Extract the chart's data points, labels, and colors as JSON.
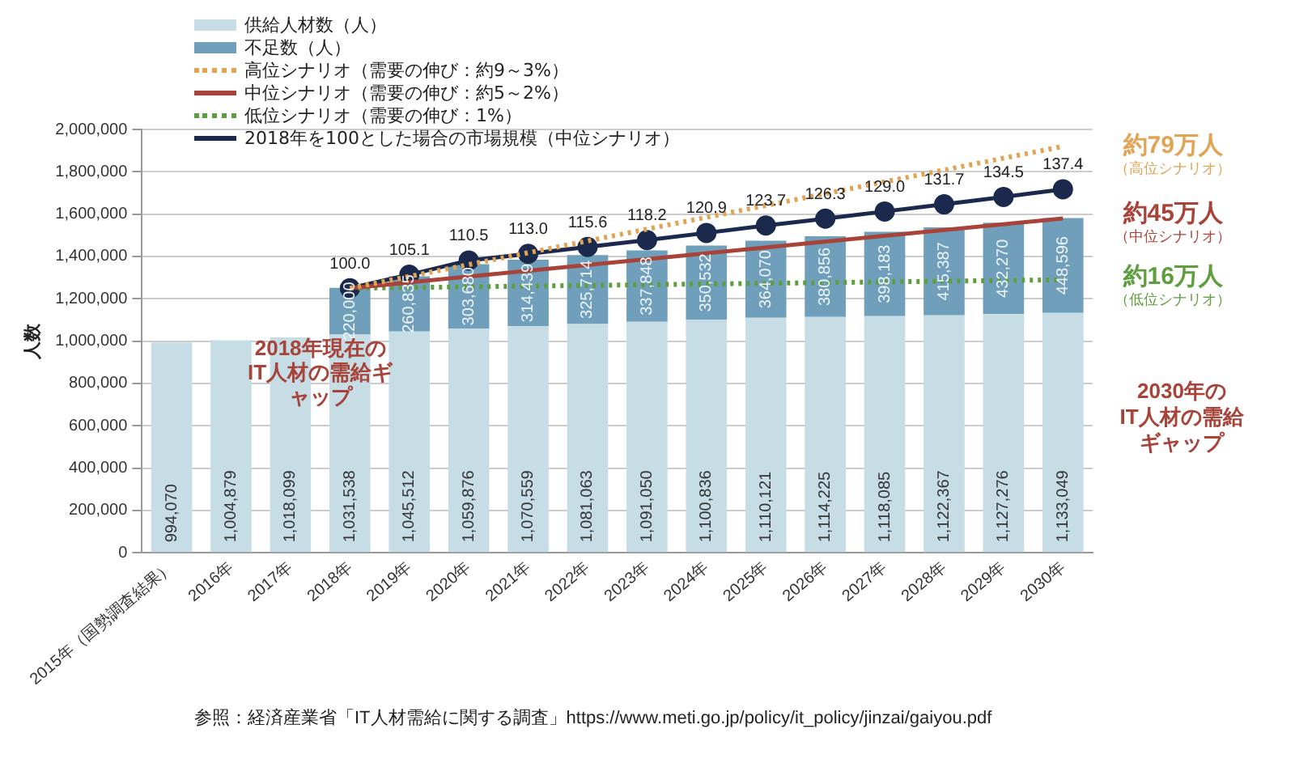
{
  "chart_data": {
    "type": "bar",
    "stacked": true,
    "ylabel": "人数",
    "categories": [
      "2015年（国勢調査結果）",
      "2016年",
      "2017年",
      "2018年",
      "2019年",
      "2020年",
      "2021年",
      "2022年",
      "2023年",
      "2024年",
      "2025年",
      "2026年",
      "2027年",
      "2028年",
      "2029年",
      "2030年"
    ],
    "series": [
      {
        "name": "供給人材数（人）",
        "color": "#c6dde6",
        "values": [
          994070,
          1004879,
          1018099,
          1031538,
          1045512,
          1059876,
          1070559,
          1081063,
          1091050,
          1100836,
          1110121,
          1114225,
          1118085,
          1122367,
          1127276,
          1133049
        ],
        "value_labels": [
          "994,070",
          "1,004,879",
          "1,018,099",
          "1,031,538",
          "1,045,512",
          "1,059,876",
          "1,070,559",
          "1,081,063",
          "1,091,050",
          "1,100,836",
          "1,110,121",
          "1,114,225",
          "1,118,085",
          "1,122,367",
          "1,127,276",
          "1,133,049"
        ]
      },
      {
        "name": "不足数（人）",
        "color": "#6f9fbb",
        "values": [
          null,
          null,
          null,
          220000,
          260835,
          303680,
          314439,
          325714,
          337848,
          350532,
          364070,
          380856,
          398183,
          415387,
          432270,
          448596
        ],
        "value_labels": [
          null,
          null,
          null,
          "220,000",
          "260,835",
          "303,680",
          "314,439",
          "325,714",
          "337,848",
          "350,532",
          "364,070",
          "380,856",
          "398,183",
          "415,387",
          "432,270",
          "448,596"
        ]
      },
      {
        "name": "高位シナリオ（需要の伸び：約9～3%）",
        "type": "line",
        "color": "#e0a454",
        "line_style": "dotted",
        "marker": "none",
        "values": [
          null,
          null,
          null,
          1250000,
          null,
          null,
          null,
          null,
          null,
          null,
          null,
          null,
          null,
          null,
          null,
          1920000
        ]
      },
      {
        "name": "中位シナリオ（需要の伸び：約5～2%）",
        "type": "line",
        "color": "#a8433a",
        "line_style": "solid",
        "marker": "none",
        "values": [
          null,
          null,
          null,
          1250000,
          null,
          null,
          null,
          null,
          null,
          null,
          null,
          null,
          null,
          null,
          null,
          1580000
        ]
      },
      {
        "name": "低位シナリオ（需要の伸び：1%）",
        "type": "line",
        "color": "#5e9e3e",
        "line_style": "dotted",
        "marker": "none",
        "values": [
          null,
          null,
          null,
          1250000,
          null,
          null,
          null,
          null,
          null,
          null,
          null,
          null,
          null,
          null,
          null,
          1290000
        ]
      },
      {
        "name": "2018年を100とした場合の市場規模（中位シナリオ）",
        "type": "line",
        "axis": "y2",
        "color": "#1b2a4c",
        "line_style": "solid",
        "marker": "circle",
        "values": [
          null,
          null,
          null,
          100.0,
          105.1,
          110.5,
          113.0,
          115.6,
          118.2,
          120.9,
          123.7,
          126.3,
          129.0,
          131.7,
          134.5,
          137.4
        ],
        "value_labels": [
          null,
          null,
          null,
          "100.0",
          "105.1",
          "110.5",
          "113.0",
          "115.6",
          "118.2",
          "120.9",
          "123.7",
          "126.3",
          "129.0",
          "131.7",
          "134.5",
          "137.4"
        ]
      }
    ],
    "ylim": [
      0,
      2000000
    ],
    "yticks": [
      0,
      {
        "value": 200000,
        "label": "200,000"
      },
      {
        "value": 400000,
        "label": "400,000"
      },
      {
        "value": 600000,
        "label": "600,000"
      },
      {
        "value": 800000,
        "label": "800,000"
      },
      {
        "value": 1000000,
        "label": "1,000,000"
      },
      {
        "value": 1200000,
        "label": "1,200,000"
      },
      {
        "value": 1400000,
        "label": "1,400,000"
      },
      {
        "value": 1600000,
        "label": "1,600,000"
      },
      {
        "value": 1800000,
        "label": "1,800,000"
      },
      {
        "value": 2000000,
        "label": "2,000,000"
      }
    ],
    "y2lim": [
      0,
      160
    ],
    "grid": "y",
    "legend": "top left",
    "annotations": [
      {
        "text": "約79万人",
        "x": "2030年",
        "y": 1920000
      },
      "（高位シナリオ）",
      {
        "text": "約45万人",
        "x": "2030年",
        "y": 1600000
      },
      "（中位シナリオ）",
      {
        "text": "約16万人",
        "x": "2030年",
        "y": 1300000
      },
      "（低位シナリオ）",
      "2030年のIT人材の需給ギャップ",
      "2018年現在のIT人材の需給ギャップ",
      "参照：経済産業省「IT人材需給に関する調査」https://www.meti.go.jp/policy/it_policy/jinzai/gaiyou.pdf"
    ]
  }
}
